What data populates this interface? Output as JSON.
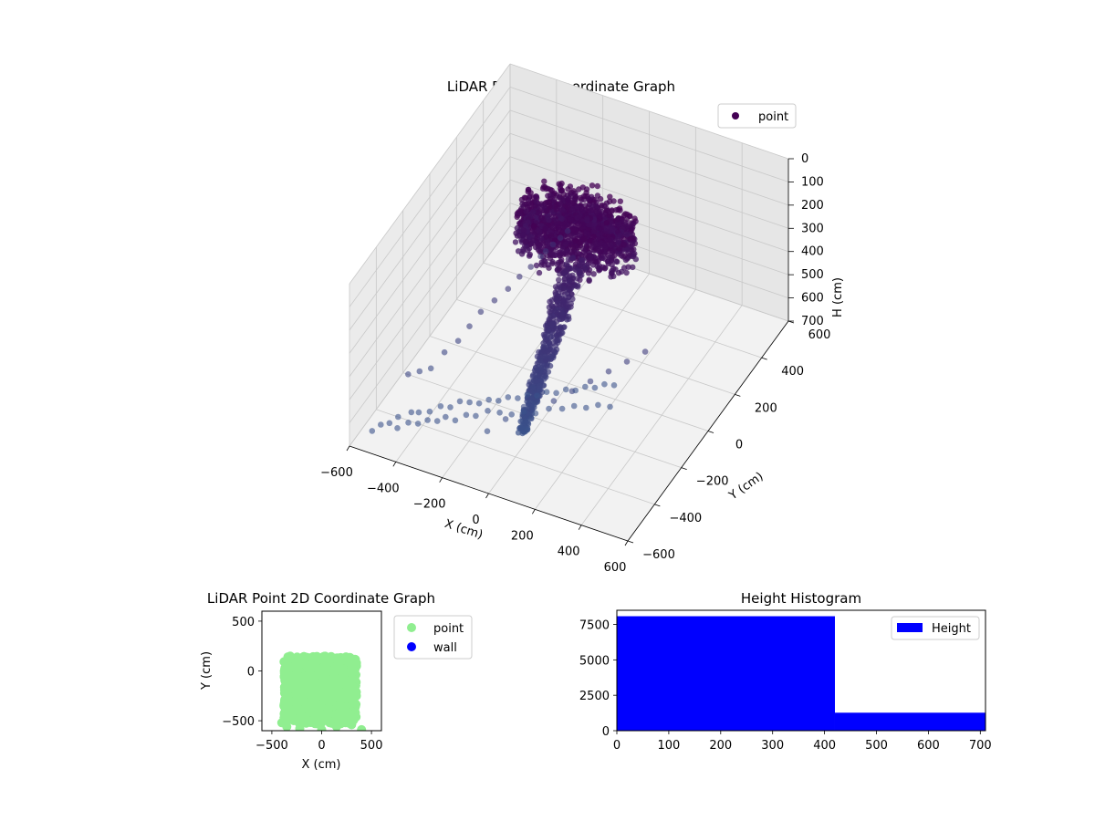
{
  "figure": {
    "colors": {
      "viridis_dark": "#440154",
      "viridis_mid": "#3b528b",
      "light_green": "#90ee90",
      "wall_blue": "#0000ff",
      "hist_blue": "#0000ff",
      "pane": "#f2f2f2",
      "grid": "#c8c8c8"
    }
  },
  "chart_data": [
    {
      "type": "scatter",
      "title": "LiDAR Point 3D Coordinate Graph",
      "xlabel": "X (cm)",
      "ylabel": "Y (cm)",
      "zlabel": "H (cm)",
      "xlim": [
        -600,
        600
      ],
      "ylim": [
        -600,
        600
      ],
      "zlim": [
        0,
        700
      ],
      "z_inverted": true,
      "x_ticks": [
        "−600",
        "−400",
        "−200",
        "0",
        "200",
        "400",
        "600"
      ],
      "y_ticks": [
        "−600",
        "−400",
        "−200",
        "0",
        "200",
        "400",
        "600"
      ],
      "z_ticks": [
        "0",
        "100",
        "200",
        "300",
        "400",
        "500",
        "600",
        "700"
      ],
      "legend": {
        "entries": [
          "point"
        ],
        "loc": "upper right"
      },
      "grid": true,
      "series": [
        {
          "name": "point",
          "color": "#440154",
          "dense_region": {
            "canopy": {
              "x_range": [
                -250,
                250
              ],
              "y_range": [
                -150,
                150
              ],
              "h_range": [
                0,
                220
              ]
            },
            "stem": {
              "x_from": [
                0,
                0
              ],
              "x_to": [
                -50,
                -50
              ],
              "h_range": [
                220,
                700
              ]
            }
          },
          "outliers": [
            [
              -520,
              -300,
              600
            ],
            [
              -500,
              -250,
              620
            ],
            [
              -480,
              -200,
              640
            ],
            [
              -450,
              -150,
              600
            ],
            [
              -420,
              -100,
              580
            ],
            [
              -400,
              -50,
              550
            ],
            [
              -380,
              0,
              520
            ],
            [
              -350,
              50,
              500
            ],
            [
              -320,
              100,
              480
            ],
            [
              -300,
              150,
              460
            ],
            [
              -280,
              200,
              450
            ],
            [
              -260,
              240,
              430
            ],
            [
              -250,
              260,
              420
            ],
            [
              -230,
              280,
              400
            ],
            [
              -210,
              300,
              380
            ],
            [
              -190,
              320,
              360
            ],
            [
              -480,
              -450,
              700
            ],
            [
              -450,
              -420,
              690
            ],
            [
              -420,
              -400,
              700
            ],
            [
              -390,
              -380,
              690
            ],
            [
              -360,
              -360,
              700
            ],
            [
              -330,
              -350,
              680
            ],
            [
              -300,
              -330,
              700
            ],
            [
              -270,
              -300,
              690
            ],
            [
              -240,
              -280,
              700
            ],
            [
              -200,
              -260,
              680
            ],
            [
              -160,
              -240,
              690
            ],
            [
              -120,
              -220,
              700
            ],
            [
              -80,
              -200,
              690
            ],
            [
              -40,
              -180,
              700
            ],
            [
              0,
              -150,
              690
            ],
            [
              40,
              -120,
              700
            ],
            [
              80,
              -100,
              690
            ],
            [
              120,
              -80,
              700
            ],
            [
              160,
              -60,
              690
            ],
            [
              200,
              -40,
              700
            ],
            [
              -150,
              -350,
              680
            ],
            [
              -100,
              -300,
              650
            ],
            [
              -50,
              -250,
              620
            ],
            [
              50,
              -200,
              600
            ],
            [
              100,
              -150,
              580
            ],
            [
              150,
              -100,
              560
            ],
            [
              200,
              -50,
              540
            ],
            [
              250,
              0,
              520
            ],
            [
              300,
              50,
              500
            ],
            [
              -560,
              -500,
              700
            ],
            [
              -540,
              -470,
              690
            ],
            [
              -520,
              -440,
              700
            ],
            [
              -500,
              -410,
              690
            ],
            [
              -460,
              -380,
              680
            ],
            [
              -440,
              -360,
              690
            ],
            [
              -410,
              -330,
              700
            ],
            [
              -380,
              -300,
              690
            ],
            [
              -350,
              -280,
              700
            ],
            [
              -320,
              -260,
              680
            ],
            [
              -290,
              -240,
              690
            ],
            [
              -260,
              -220,
              700
            ],
            [
              -230,
              -200,
              690
            ],
            [
              -200,
              -180,
              700
            ],
            [
              -170,
              -160,
              690
            ],
            [
              -140,
              -140,
              700
            ],
            [
              -110,
              -120,
              690
            ],
            [
              -80,
              -100,
              700
            ],
            [
              -50,
              -80,
              690
            ],
            [
              -20,
              -60,
              700
            ],
            [
              10,
              -40,
              690
            ],
            [
              40,
              -20,
              700
            ],
            [
              70,
              0,
              690
            ],
            [
              100,
              20,
              700
            ],
            [
              130,
              40,
              690
            ],
            [
              160,
              60,
              700
            ]
          ]
        }
      ]
    },
    {
      "type": "scatter",
      "title": "LiDAR Point 2D Coordinate Graph",
      "xlabel": "X (cm)",
      "ylabel": "Y (cm)",
      "xlim": [
        -600,
        600
      ],
      "ylim": [
        -600,
        600
      ],
      "x_ticks": [
        -500,
        0,
        500
      ],
      "y_ticks": [
        -500,
        0,
        500
      ],
      "legend": {
        "entries": [
          "point",
          "wall"
        ],
        "loc": "outside upper right"
      },
      "grid": false,
      "series": [
        {
          "name": "point",
          "color": "#90ee90",
          "region": {
            "x_range": [
              -420,
              350
            ],
            "y_range": [
              -560,
              150
            ]
          },
          "outliers": [
            [
              -350,
              -560
            ],
            [
              -220,
              -580
            ],
            [
              0,
              -590
            ],
            [
              150,
              -560
            ],
            [
              300,
              -540
            ],
            [
              400,
              -590
            ],
            [
              -400,
              -520
            ]
          ]
        },
        {
          "name": "wall",
          "color": "#0000ff",
          "points": []
        }
      ]
    },
    {
      "type": "bar",
      "title": "Height Histogram",
      "xlabel": "",
      "ylabel": "",
      "xlim": [
        0,
        710
      ],
      "ylim": [
        0,
        8500
      ],
      "x_ticks": [
        0,
        100,
        200,
        300,
        400,
        500,
        600,
        700
      ],
      "y_ticks": [
        0,
        2500,
        5000,
        7500
      ],
      "legend": {
        "entries": [
          "Height"
        ],
        "loc": "upper right"
      },
      "grid": false,
      "bins": [
        {
          "from": 0,
          "to": 420,
          "count": 8080
        },
        {
          "from": 420,
          "to": 710,
          "count": 1270
        }
      ],
      "series": [
        {
          "name": "Height",
          "color": "#0000ff"
        }
      ]
    }
  ]
}
